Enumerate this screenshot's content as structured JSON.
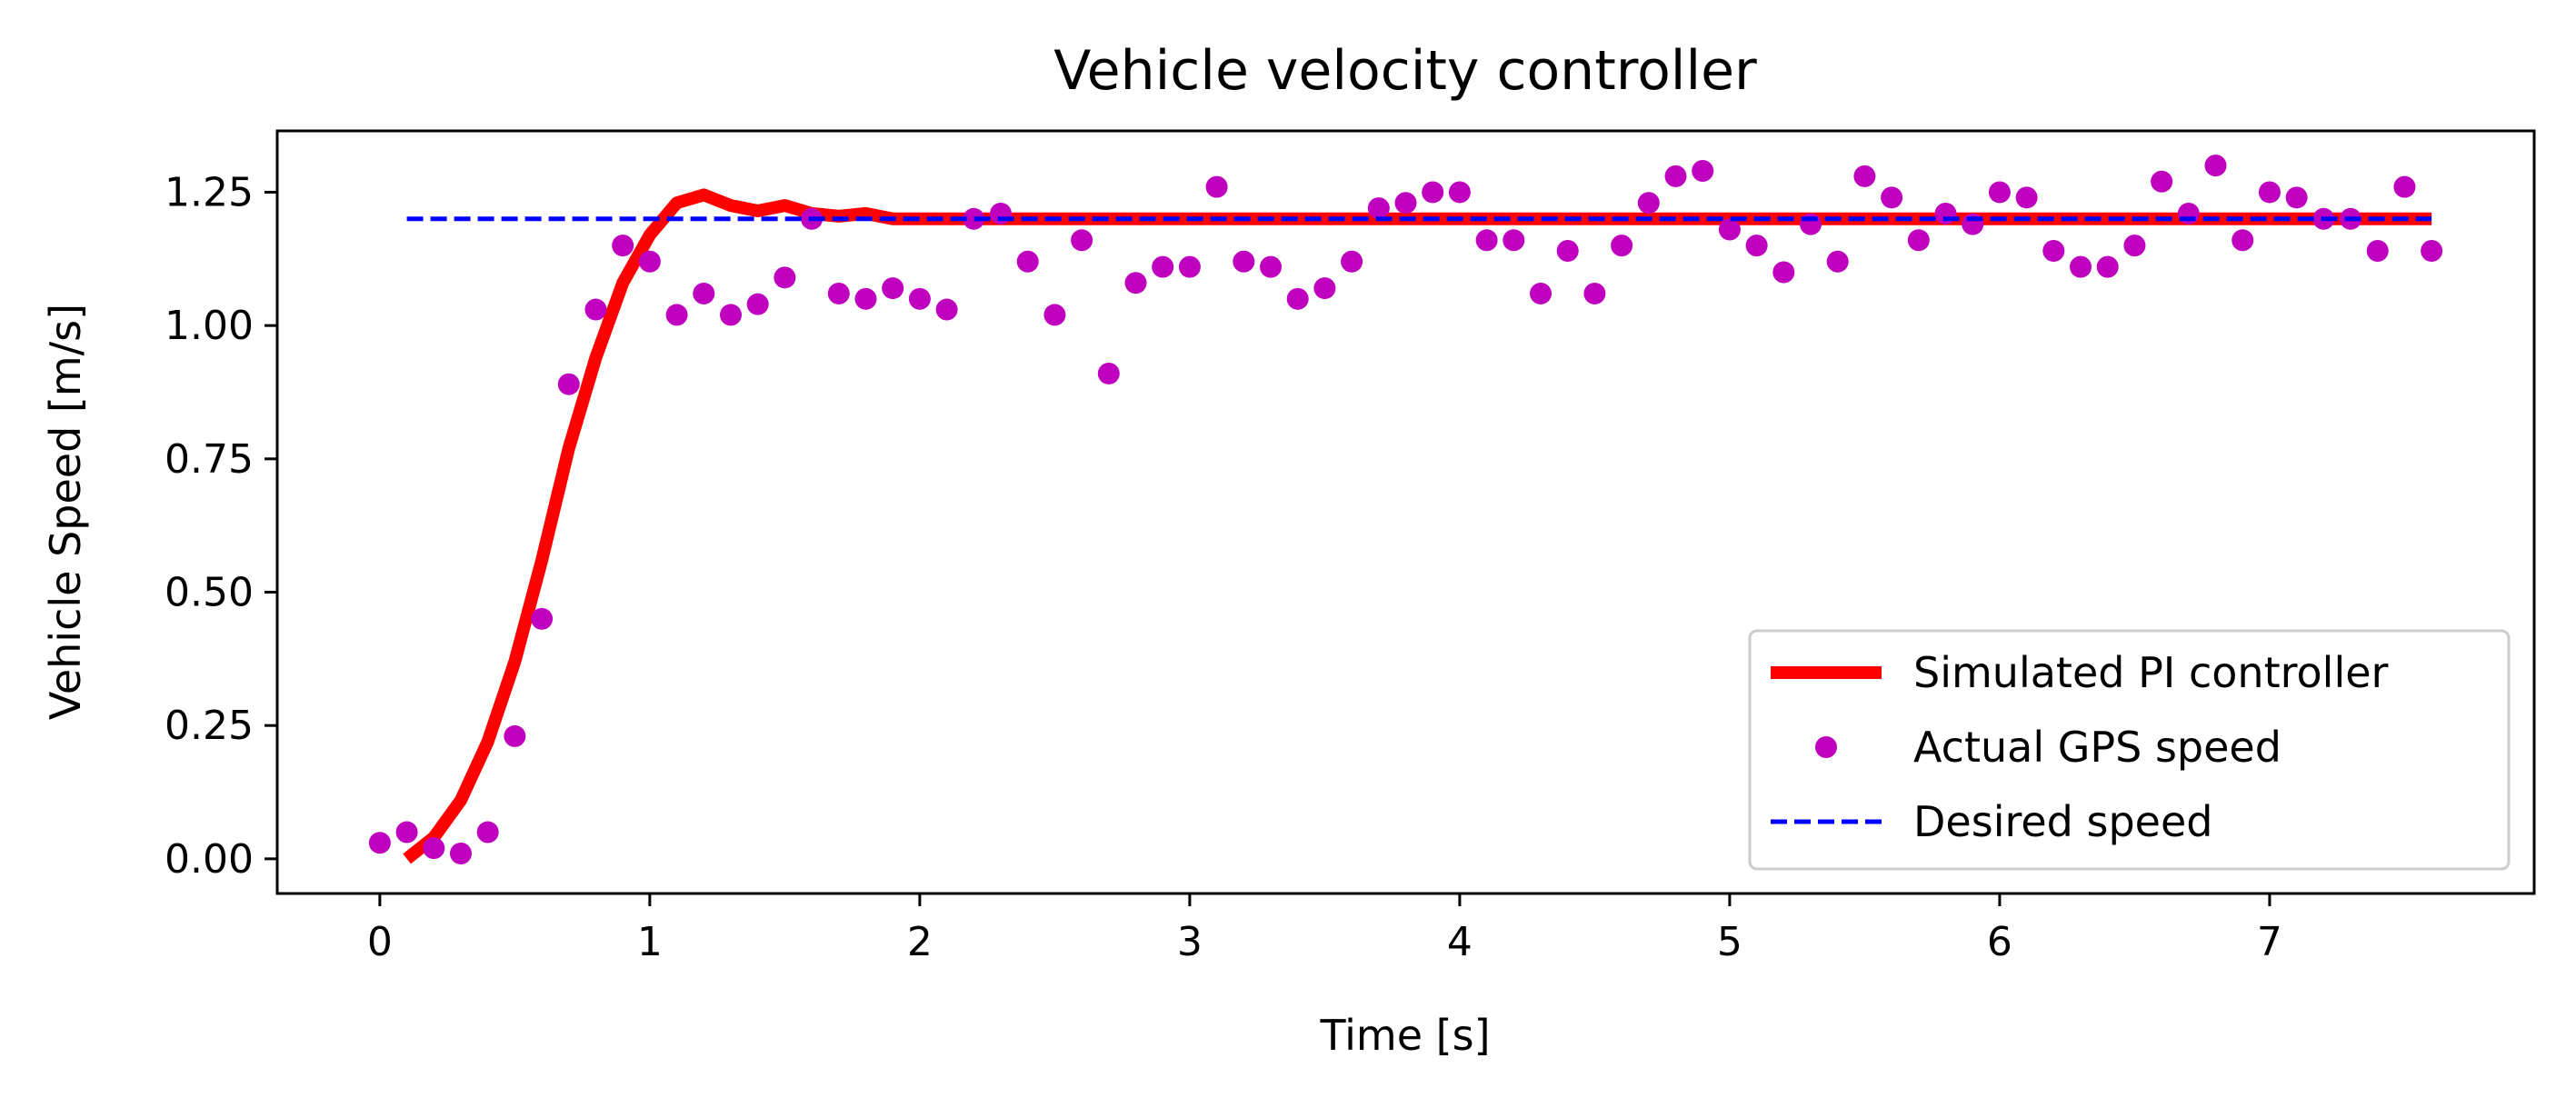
{
  "chart_data": {
    "type": "line",
    "title": "Vehicle velocity controller",
    "xlabel": "Time [s]",
    "ylabel": "Vehicle Speed [m/s]",
    "xlim": [
      -0.38,
      7.98
    ],
    "ylim": [
      -0.065,
      1.365
    ],
    "xticks": [
      0,
      1,
      2,
      3,
      4,
      5,
      6,
      7
    ],
    "yticks": [
      0.0,
      0.25,
      0.5,
      0.75,
      1.0,
      1.25
    ],
    "ytick_labels": [
      "0.00",
      "0.25",
      "0.50",
      "0.75",
      "1.00",
      "1.25"
    ],
    "grid": false,
    "legend_position": "lower right",
    "series": [
      {
        "name": "Simulated PI controller",
        "kind": "line",
        "color": "#ff0000",
        "x": [
          0.1,
          0.2,
          0.3,
          0.4,
          0.5,
          0.6,
          0.7,
          0.8,
          0.9,
          1.0,
          1.1,
          1.2,
          1.3,
          1.4,
          1.5,
          1.6,
          1.7,
          1.8,
          1.9,
          2.0,
          2.2,
          2.5,
          3.0,
          3.5,
          4.0,
          5.0,
          6.0,
          7.0,
          7.6
        ],
        "y": [
          0.0,
          0.04,
          0.11,
          0.22,
          0.37,
          0.56,
          0.77,
          0.94,
          1.08,
          1.17,
          1.23,
          1.245,
          1.225,
          1.215,
          1.225,
          1.21,
          1.205,
          1.21,
          1.2,
          1.2,
          1.2,
          1.2,
          1.2,
          1.2,
          1.2,
          1.2,
          1.2,
          1.2,
          1.2
        ]
      },
      {
        "name": "Actual GPS speed",
        "kind": "scatter",
        "color": "#bf00bf",
        "x": [
          0.0,
          0.1,
          0.2,
          0.3,
          0.4,
          0.5,
          0.6,
          0.7,
          0.8,
          0.9,
          1.0,
          1.1,
          1.2,
          1.3,
          1.4,
          1.5,
          1.6,
          1.7,
          1.8,
          1.9,
          2.0,
          2.1,
          2.2,
          2.3,
          2.4,
          2.5,
          2.6,
          2.7,
          2.8,
          2.9,
          3.0,
          3.1,
          3.2,
          3.3,
          3.4,
          3.5,
          3.6,
          3.7,
          3.8,
          3.9,
          4.0,
          4.1,
          4.2,
          4.3,
          4.4,
          4.5,
          4.6,
          4.7,
          4.8,
          4.9,
          5.0,
          5.1,
          5.2,
          5.3,
          5.4,
          5.5,
          5.6,
          5.7,
          5.8,
          5.9,
          6.0,
          6.1,
          6.2,
          6.3,
          6.4,
          6.5,
          6.6,
          6.7,
          6.8,
          6.9,
          7.0,
          7.1,
          7.2,
          7.3,
          7.4,
          7.5,
          7.6
        ],
        "y": [
          0.03,
          0.05,
          0.02,
          0.01,
          0.05,
          0.23,
          0.45,
          0.89,
          1.03,
          1.15,
          1.12,
          1.02,
          1.06,
          1.02,
          1.04,
          1.09,
          1.2,
          1.06,
          1.05,
          1.07,
          1.05,
          1.03,
          1.2,
          1.21,
          1.12,
          1.02,
          1.16,
          0.91,
          1.08,
          1.11,
          1.11,
          1.26,
          1.12,
          1.11,
          1.05,
          1.07,
          1.12,
          1.22,
          1.23,
          1.25,
          1.25,
          1.16,
          1.16,
          1.06,
          1.14,
          1.06,
          1.15,
          1.23,
          1.28,
          1.29,
          1.18,
          1.15,
          1.1,
          1.19,
          1.12,
          1.28,
          1.24,
          1.16,
          1.21,
          1.19,
          1.25,
          1.24,
          1.14,
          1.11,
          1.11,
          1.15,
          1.27,
          1.21,
          1.3,
          1.16,
          1.25,
          1.24,
          1.2,
          1.2,
          1.14,
          1.26,
          1.14
        ]
      },
      {
        "name": "Desired speed",
        "kind": "line-dashed",
        "color": "#0000ff",
        "x": [
          0.1,
          7.6
        ],
        "y": [
          1.2,
          1.2
        ]
      }
    ]
  }
}
